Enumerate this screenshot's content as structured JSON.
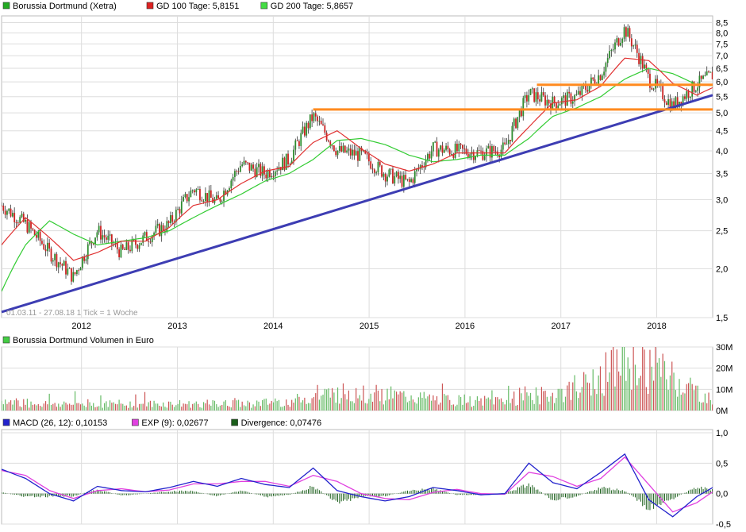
{
  "colors": {
    "price_up": "#2e8b2e",
    "price_down": "#cc2222",
    "gd100": "#e03030",
    "gd200": "#33cc33",
    "trendline": "#3d3db3",
    "resistance": "#ff8a1f",
    "macd": "#2222cc",
    "exp": "#e040e0",
    "divergence": "#1a5e1a",
    "vol_up": "#66bb66",
    "vol_down": "#cc5555",
    "grid": "#dddddd"
  },
  "legend_price": [
    {
      "key": "price",
      "label": "Borussia Dortmund (Xetra)",
      "swatch": "#22aa22"
    },
    {
      "key": "gd100",
      "label": "GD 100 Tage: 5,8151",
      "swatch": "#dd2222"
    },
    {
      "key": "gd200",
      "label": "GD 200 Tage: 5,8657",
      "swatch": "#44dd44"
    }
  ],
  "legend_volume": [
    {
      "key": "volume",
      "label": "Borussia Dortmund Volumen in Euro",
      "swatch": "#44cc44"
    }
  ],
  "legend_macd": [
    {
      "key": "macd",
      "label": "MACD (26, 12): 0,10153",
      "swatch": "#2222cc"
    },
    {
      "key": "exp",
      "label": "EXP (9): 0,02677",
      "swatch": "#e040e0"
    },
    {
      "key": "div",
      "label": "Divergence: 0,07476",
      "swatch": "#1a5e1a"
    }
  ],
  "footnote": "01.03.11 - 27.08.18   1 Tick = 1 Woche",
  "chart_data": [
    {
      "type": "line",
      "title": "Borussia Dortmund (Xetra)",
      "scale": "log",
      "ylim": [
        1.5,
        8.6
      ],
      "x_tick_labels": [
        "2012",
        "2013",
        "2014",
        "2015",
        "2016",
        "2017",
        "2018"
      ],
      "y_tick_labels": [
        "1,5",
        "2,0",
        "2,5",
        "3,0",
        "3,5",
        "4,0",
        "4,5",
        "5,0",
        "5,5",
        "6,0",
        "6,5",
        "7,0",
        "7,5",
        "8,0",
        "8,5"
      ],
      "series": [
        {
          "name": "Borussia Dortmund (Xetra)",
          "x": [
            "2011-03",
            "2011-06",
            "2011-09",
            "2011-12",
            "2012-03",
            "2012-06",
            "2012-09",
            "2012-12",
            "2013-03",
            "2013-06",
            "2013-09",
            "2013-12",
            "2014-03",
            "2014-06",
            "2014-09",
            "2014-12",
            "2015-03",
            "2015-06",
            "2015-09",
            "2015-12",
            "2016-03",
            "2016-06",
            "2016-09",
            "2016-12",
            "2017-03",
            "2017-06",
            "2017-09",
            "2017-12",
            "2018-03",
            "2018-06",
            "2018-08"
          ],
          "values": [
            2.9,
            2.6,
            2.2,
            1.9,
            2.5,
            2.2,
            2.4,
            2.6,
            3.2,
            2.95,
            3.7,
            3.5,
            3.8,
            4.9,
            4.0,
            3.9,
            3.5,
            3.3,
            4.05,
            4.0,
            3.95,
            4.05,
            5.6,
            5.3,
            5.5,
            6.3,
            8.2,
            6.1,
            5.2,
            5.9,
            6.25
          ]
        },
        {
          "name": "GD 100 Tage",
          "x": [
            "2011-03",
            "2011-06",
            "2011-09",
            "2011-12",
            "2012-03",
            "2012-06",
            "2012-09",
            "2012-12",
            "2013-03",
            "2013-06",
            "2013-09",
            "2013-12",
            "2014-03",
            "2014-06",
            "2014-09",
            "2014-12",
            "2015-03",
            "2015-06",
            "2015-09",
            "2015-12",
            "2016-03",
            "2016-06",
            "2016-09",
            "2016-12",
            "2017-03",
            "2017-06",
            "2017-09",
            "2017-12",
            "2018-03",
            "2018-06",
            "2018-08"
          ],
          "values": [
            2.3,
            2.7,
            2.4,
            2.1,
            2.2,
            2.35,
            2.35,
            2.55,
            2.9,
            3.0,
            3.3,
            3.55,
            3.65,
            4.2,
            4.5,
            4.05,
            3.7,
            3.55,
            3.7,
            3.95,
            3.95,
            3.95,
            4.6,
            5.3,
            5.4,
            5.85,
            6.9,
            6.8,
            5.95,
            5.55,
            5.8
          ]
        },
        {
          "name": "GD 200 Tage",
          "x": [
            "2011-03",
            "2011-06",
            "2011-09",
            "2011-12",
            "2012-03",
            "2012-06",
            "2012-09",
            "2012-12",
            "2013-03",
            "2013-06",
            "2013-09",
            "2013-12",
            "2014-03",
            "2014-06",
            "2014-09",
            "2014-12",
            "2015-03",
            "2015-06",
            "2015-09",
            "2015-12",
            "2016-03",
            "2016-06",
            "2016-09",
            "2016-12",
            "2017-03",
            "2017-06",
            "2017-09",
            "2017-12",
            "2018-03",
            "2018-06",
            "2018-08"
          ],
          "values": [
            1.75,
            2.3,
            2.65,
            2.45,
            2.3,
            2.35,
            2.4,
            2.5,
            2.7,
            2.9,
            3.1,
            3.35,
            3.5,
            3.8,
            4.25,
            4.3,
            4.15,
            3.9,
            3.75,
            3.8,
            3.9,
            3.9,
            4.3,
            4.9,
            5.15,
            5.5,
            6.1,
            6.5,
            6.3,
            5.9,
            5.87
          ]
        },
        {
          "name": "Trendlinie",
          "x": [
            "2011-03",
            "2018-08"
          ],
          "values": [
            1.55,
            5.55
          ]
        },
        {
          "name": "Widerstand 1",
          "x": [
            "2014-06",
            "2018-08"
          ],
          "values": [
            5.1,
            5.1
          ]
        },
        {
          "name": "Widerstand 2",
          "x": [
            "2016-10",
            "2018-08"
          ],
          "values": [
            5.9,
            5.9
          ]
        }
      ]
    },
    {
      "type": "bar",
      "title": "Borussia Dortmund Volumen in Euro",
      "unit": "Mio. Euro",
      "ylim": [
        0,
        30
      ],
      "y_tick_labels": [
        "30M",
        "20M",
        "10M",
        "0M"
      ],
      "x": [
        "2011-03",
        "2011-09",
        "2012-03",
        "2012-09",
        "2013-03",
        "2013-09",
        "2014-03",
        "2014-09",
        "2015-03",
        "2015-09",
        "2016-03",
        "2016-09",
        "2017-03",
        "2017-09",
        "2018-03",
        "2018-08"
      ],
      "values": [
        4,
        3,
        3,
        3,
        3,
        3,
        4,
        8,
        7,
        5,
        4,
        6,
        9,
        22,
        15,
        4
      ]
    },
    {
      "type": "line",
      "title": "MACD",
      "ylim": [
        -0.5,
        1.0
      ],
      "y_tick_labels": [
        "1,0",
        "0,5",
        "0,0",
        "-0,5"
      ],
      "x": [
        "2011-03",
        "2011-06",
        "2011-09",
        "2011-12",
        "2012-03",
        "2012-06",
        "2012-09",
        "2012-12",
        "2013-03",
        "2013-06",
        "2013-09",
        "2013-12",
        "2014-03",
        "2014-06",
        "2014-09",
        "2014-12",
        "2015-03",
        "2015-06",
        "2015-09",
        "2015-12",
        "2016-03",
        "2016-06",
        "2016-09",
        "2016-12",
        "2017-03",
        "2017-06",
        "2017-09",
        "2017-12",
        "2018-03",
        "2018-06",
        "2018-08"
      ],
      "series": [
        {
          "name": "MACD (26, 12)",
          "values": [
            0.4,
            0.25,
            0.0,
            -0.12,
            0.12,
            0.05,
            0.03,
            0.1,
            0.2,
            0.12,
            0.25,
            0.15,
            0.1,
            0.42,
            0.05,
            -0.05,
            -0.12,
            -0.05,
            0.1,
            0.05,
            -0.02,
            0.0,
            0.5,
            0.18,
            0.08,
            0.35,
            0.65,
            -0.1,
            -0.38,
            -0.05,
            0.1
          ]
        },
        {
          "name": "EXP (9)",
          "values": [
            0.38,
            0.3,
            0.05,
            -0.08,
            0.05,
            0.08,
            0.03,
            0.06,
            0.16,
            0.16,
            0.2,
            0.2,
            0.12,
            0.3,
            0.2,
            0.0,
            -0.08,
            -0.1,
            0.02,
            0.07,
            0.0,
            -0.01,
            0.35,
            0.28,
            0.12,
            0.25,
            0.6,
            0.15,
            -0.3,
            -0.15,
            0.03
          ]
        },
        {
          "name": "Divergence",
          "values": [
            0.02,
            -0.05,
            -0.05,
            -0.04,
            0.07,
            -0.03,
            0.0,
            0.04,
            0.04,
            -0.04,
            0.05,
            -0.05,
            -0.02,
            0.12,
            -0.15,
            -0.05,
            -0.04,
            0.05,
            0.08,
            -0.02,
            -0.02,
            0.01,
            0.15,
            -0.1,
            -0.04,
            0.1,
            0.05,
            -0.25,
            -0.08,
            0.1,
            0.07
          ]
        }
      ]
    }
  ]
}
